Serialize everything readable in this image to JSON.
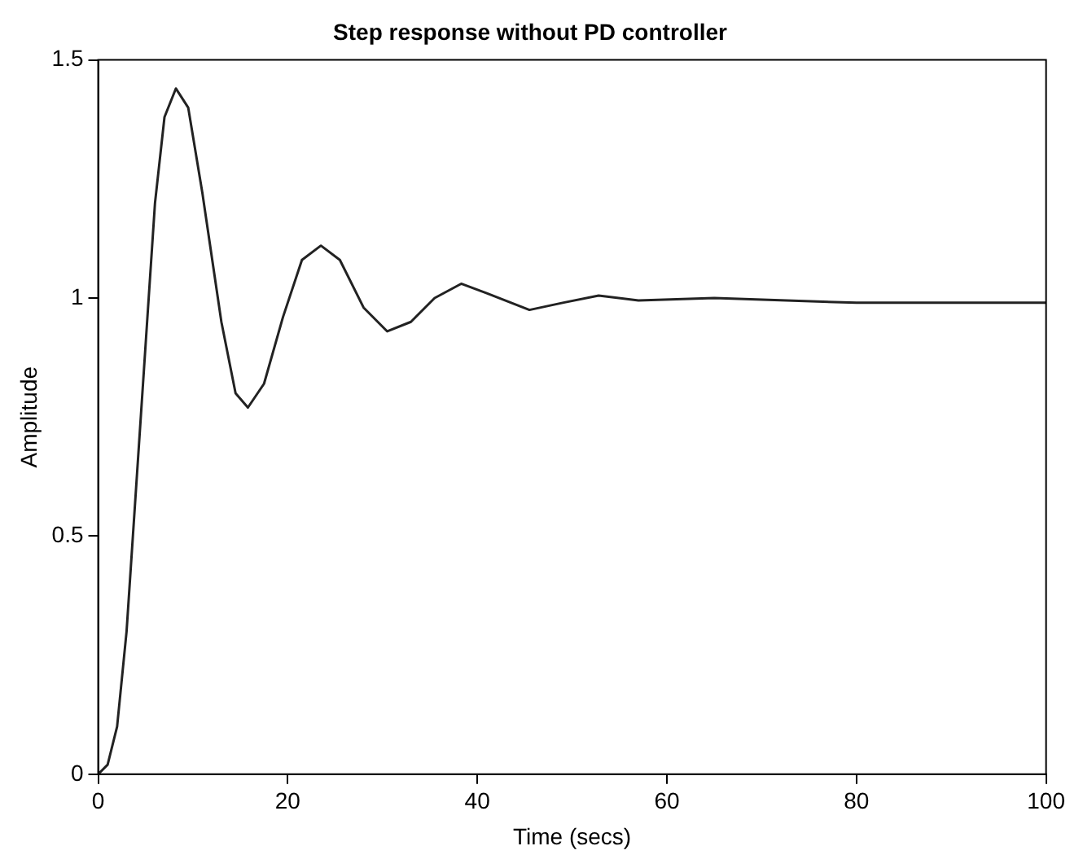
{
  "chart_data": {
    "type": "line",
    "title": "Step response without PD controller",
    "xlabel": "Time (secs)",
    "ylabel": "Amplitude",
    "x": [
      0,
      1,
      2,
      3,
      4,
      5,
      6,
      7,
      8.2,
      9.5,
      11,
      13,
      14.5,
      15.8,
      17.5,
      19.5,
      21.5,
      23.5,
      25.5,
      28,
      30.5,
      33,
      35.5,
      38.3,
      41,
      45.5,
      49,
      52.8,
      57,
      65,
      80,
      100
    ],
    "series": [
      {
        "color": "#222222",
        "values": [
          0,
          0.02,
          0.1,
          0.3,
          0.6,
          0.9,
          1.2,
          1.38,
          1.44,
          1.4,
          1.22,
          0.95,
          0.8,
          0.77,
          0.82,
          0.96,
          1.08,
          1.11,
          1.08,
          0.98,
          0.93,
          0.95,
          1.0,
          1.03,
          1.01,
          0.975,
          0.99,
          1.005,
          0.995,
          1.0,
          0.99,
          0.99
        ]
      }
    ],
    "xlim": [
      0,
      100
    ],
    "xticks": [
      0,
      20,
      40,
      60,
      80,
      100
    ],
    "ylim": [
      0,
      1.5
    ],
    "yticks": [
      0,
      0.5,
      1,
      1.5
    ],
    "grid": false,
    "legend": false,
    "marker": "none",
    "line_style": "solid"
  }
}
